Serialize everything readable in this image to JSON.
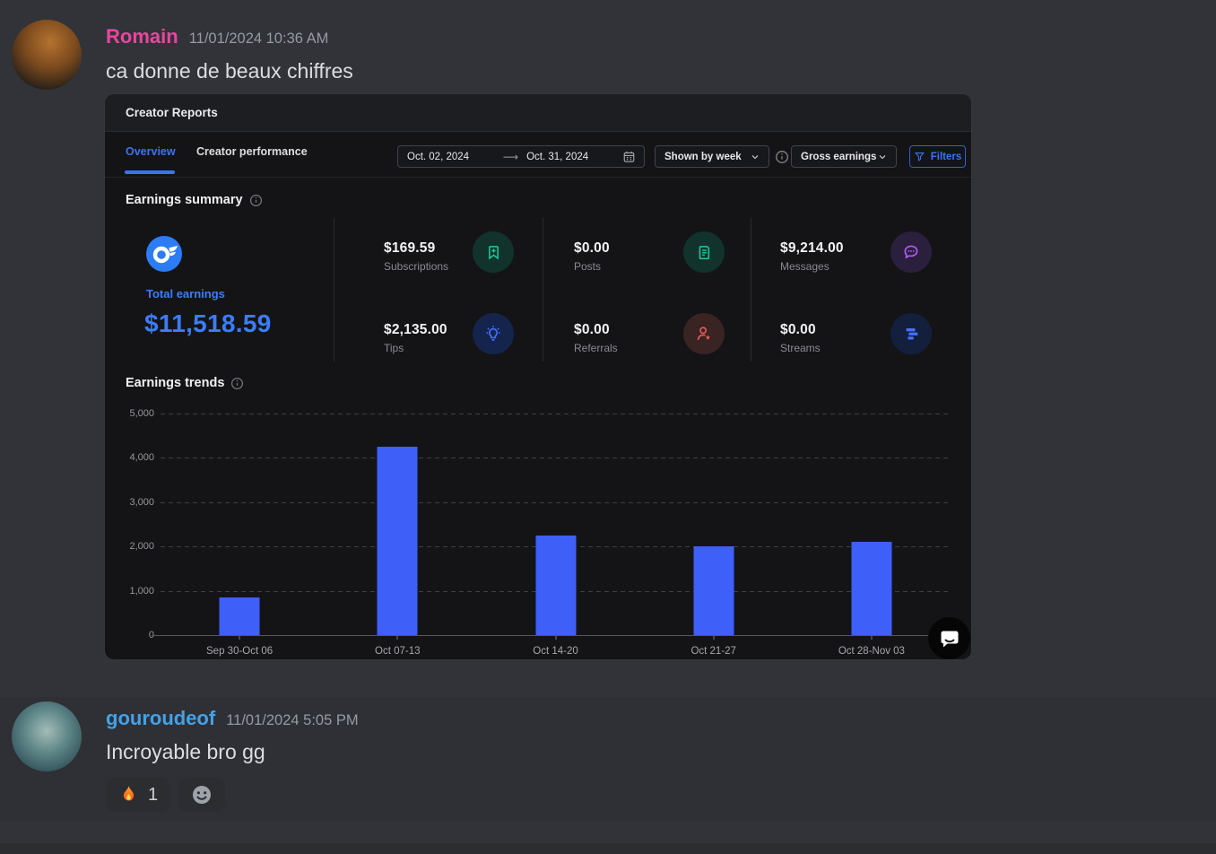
{
  "colors": {
    "page_bg": "#313338",
    "message_hover_bg": "#2E3036",
    "embed_bg": "#141417",
    "accent": "#3D72F5",
    "total_earnings_blue": "#3B7CF7",
    "bar_blue": "#3E5FF8",
    "pink_username": "#EB459E",
    "blue_username": "#42A2E8"
  },
  "messages": [
    {
      "author": "Romain",
      "name_color": "#EB459E",
      "timestamp": "11/01/2024 10:36 AM",
      "text": "ca donne de beaux chiffres"
    },
    {
      "author": "gouroudeof",
      "name_color": "#42A2E8",
      "timestamp": "11/01/2024 5:05 PM",
      "text": "Incroyable bro gg",
      "reactions": [
        {
          "emoji": "🔥",
          "count": "1"
        }
      ]
    }
  ],
  "report": {
    "title": "Creator Reports",
    "tabs": [
      {
        "label": "Overview"
      },
      {
        "label": "Creator performance"
      }
    ],
    "active_tab": "Overview",
    "date_range": {
      "start": "Oct. 02, 2024",
      "end": "Oct. 31, 2024"
    },
    "controls": {
      "shown_by": "Shown by week",
      "metric": "Gross earnings",
      "filters_label": "Filters"
    },
    "earnings_summary": {
      "section_title": "Earnings summary",
      "total": {
        "label": "Total earnings",
        "value": "$11,518.59",
        "badge_color": "#2C7CF4"
      },
      "stats": [
        {
          "value": "$169.59",
          "label": "Subscriptions",
          "icon": "bookmark-plus-icon",
          "icon_color": "#1EC39B",
          "icon_bg": "#11332C"
        },
        {
          "value": "$2,135.00",
          "label": "Tips",
          "icon": "lightbulb-icon",
          "icon_color": "#4470FC",
          "icon_bg": "#15244C"
        },
        {
          "value": "$0.00",
          "label": "Posts",
          "icon": "document-icon",
          "icon_color": "#1EC39B",
          "icon_bg": "#11332C"
        },
        {
          "value": "$0.00",
          "label": "Referrals",
          "icon": "person-star-icon",
          "icon_color": "#E05A54",
          "icon_bg": "#392323"
        },
        {
          "value": "$9,214.00",
          "label": "Messages",
          "icon": "chat-bubble-icon",
          "icon_color": "#B05CF2",
          "icon_bg": "#2A1F3C"
        },
        {
          "value": "$0.00",
          "label": "Streams",
          "icon": "stacked-bars-icon",
          "icon_color": "#4470FC",
          "icon_bg": "#141F3E"
        }
      ]
    },
    "trends_section_title": "Earnings trends"
  },
  "chart_data": {
    "type": "bar",
    "title": "Earnings trends",
    "categories": [
      "Sep 30-Oct 06",
      "Oct 07-13",
      "Oct 14-20",
      "Oct 21-27",
      "Oct 28-Nov 03"
    ],
    "values": [
      850,
      4250,
      2250,
      2000,
      2100
    ],
    "xlabel": "",
    "ylabel": "",
    "ylim": [
      0,
      5000
    ],
    "yticks": [
      0,
      1000,
      2000,
      3000,
      4000,
      5000
    ],
    "grid": "horizontal-dashed",
    "legend": false,
    "bar_color": "#3E5FF8"
  }
}
